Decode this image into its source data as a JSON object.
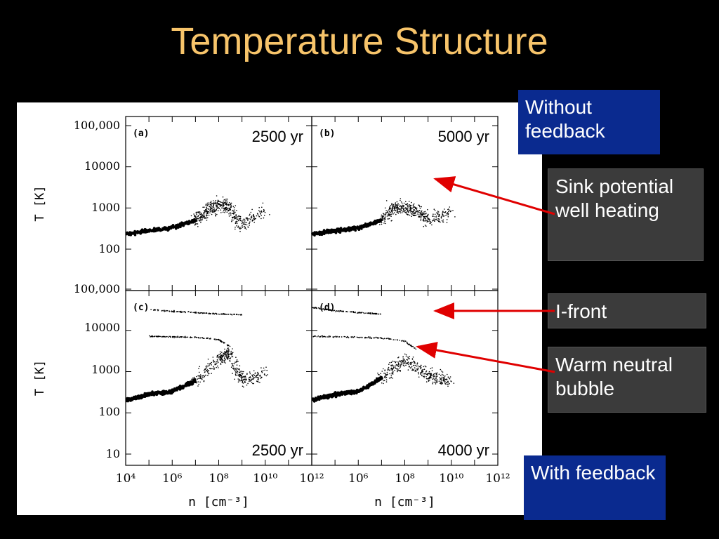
{
  "title": "Temperature Structure",
  "colors": {
    "title": "#f7c46a",
    "blue_box": "#0a2a8f",
    "gray_box": "#3b3b3b",
    "arrow": "#e00000"
  },
  "labels": {
    "without_feedback": "Without feedback",
    "with_feedback": "With feedback",
    "sink_heating": "Sink potential well heating",
    "ifront": "I-front",
    "warm_neutral": "Warm neutral bubble"
  },
  "chart_data": [
    {
      "type": "scatter",
      "panel": "(a)",
      "annotation": "2500 yr",
      "ylabel": "T [K]",
      "xlabel": "",
      "xscale": "log",
      "yscale": "log",
      "xlim": [
        10000.0,
        1000000000000.0
      ],
      "ylim": [
        50,
        150000
      ],
      "yticks": [
        "100",
        "1000",
        "10000",
        "100,000"
      ],
      "series": [
        {
          "x": [
            10000.0,
            100000.0,
            1000000.0,
            10000000.0,
            30000000.0,
            100000000.0,
            300000000.0,
            1000000000.0,
            10000000000.0
          ],
          "y": [
            230,
            280,
            330,
            500,
            800,
            1200,
            1000,
            400,
            800
          ]
        }
      ]
    },
    {
      "type": "scatter",
      "panel": "(b)",
      "annotation": "5000 yr",
      "xscale": "log",
      "yscale": "log",
      "xlim": [
        10000.0,
        1000000000000.0
      ],
      "ylim": [
        50,
        150000
      ],
      "series": [
        {
          "x": [
            10000.0,
            100000.0,
            1000000.0,
            10000000.0,
            30000000.0,
            100000000.0,
            300000000.0,
            1000000000.0,
            10000000000.0
          ],
          "y": [
            230,
            280,
            330,
            500,
            1000,
            1000,
            900,
            500,
            800
          ]
        }
      ]
    },
    {
      "type": "scatter",
      "panel": "(c)",
      "annotation": "2500 yr",
      "ylabel": "T [K]",
      "xlabel": "n [cm⁻³]",
      "xscale": "log",
      "yscale": "log",
      "xlim": [
        10000.0,
        1000000000000.0
      ],
      "ylim": [
        10,
        150000
      ],
      "yticks": [
        "10",
        "100",
        "1000",
        "10000",
        "100,000"
      ],
      "xticks": [
        "10⁴",
        "10⁶",
        "10⁸",
        "10¹⁰",
        "10¹²"
      ],
      "series": [
        {
          "name": "",
          "x": [
            10000.0,
            100000.0,
            1000000.0,
            10000000.0,
            100000000.0,
            300000000.0,
            1000000000.0,
            10000000000.0
          ],
          "y": [
            200,
            280,
            330,
            600,
            2000,
            3000,
            600,
            900
          ]
        },
        {
          "name": "",
          "x": [
            100000.0,
            1000000.0,
            10000000.0,
            100000000.0,
            300000000.0
          ],
          "y": [
            7200,
            7000,
            6800,
            6000,
            4000
          ]
        },
        {
          "name": "",
          "x": [
            100000.0,
            1000000.0,
            10000000.0,
            100000000.0,
            1000000000.0
          ],
          "y": [
            32000,
            29000,
            27000,
            25000,
            24000
          ]
        }
      ]
    },
    {
      "type": "scatter",
      "panel": "(d)",
      "annotation": "4000 yr",
      "xlabel": "n [cm⁻³]",
      "xscale": "log",
      "yscale": "log",
      "xlim": [
        10000.0,
        1000000000000.0
      ],
      "ylim": [
        10,
        150000
      ],
      "xticks": [
        "10⁶",
        "10⁸",
        "10¹⁰",
        "10¹²"
      ],
      "series": [
        {
          "name": "",
          "x": [
            10000.0,
            100000.0,
            1000000.0,
            10000000.0,
            100000000.0,
            1000000000.0,
            10000000000.0
          ],
          "y": [
            200,
            280,
            330,
            700,
            2000,
            800,
            600
          ]
        },
        {
          "name": "",
          "x": [
            10000.0,
            100000.0,
            1000000.0,
            10000000.0,
            100000000.0,
            300000000.0
          ],
          "y": [
            7200,
            7000,
            6800,
            6500,
            5500,
            3500
          ]
        },
        {
          "name": "",
          "x": [
            10000.0,
            100000.0,
            1000000.0,
            10000000.0
          ],
          "y": [
            36000,
            30000,
            27000,
            25000
          ]
        }
      ]
    }
  ]
}
